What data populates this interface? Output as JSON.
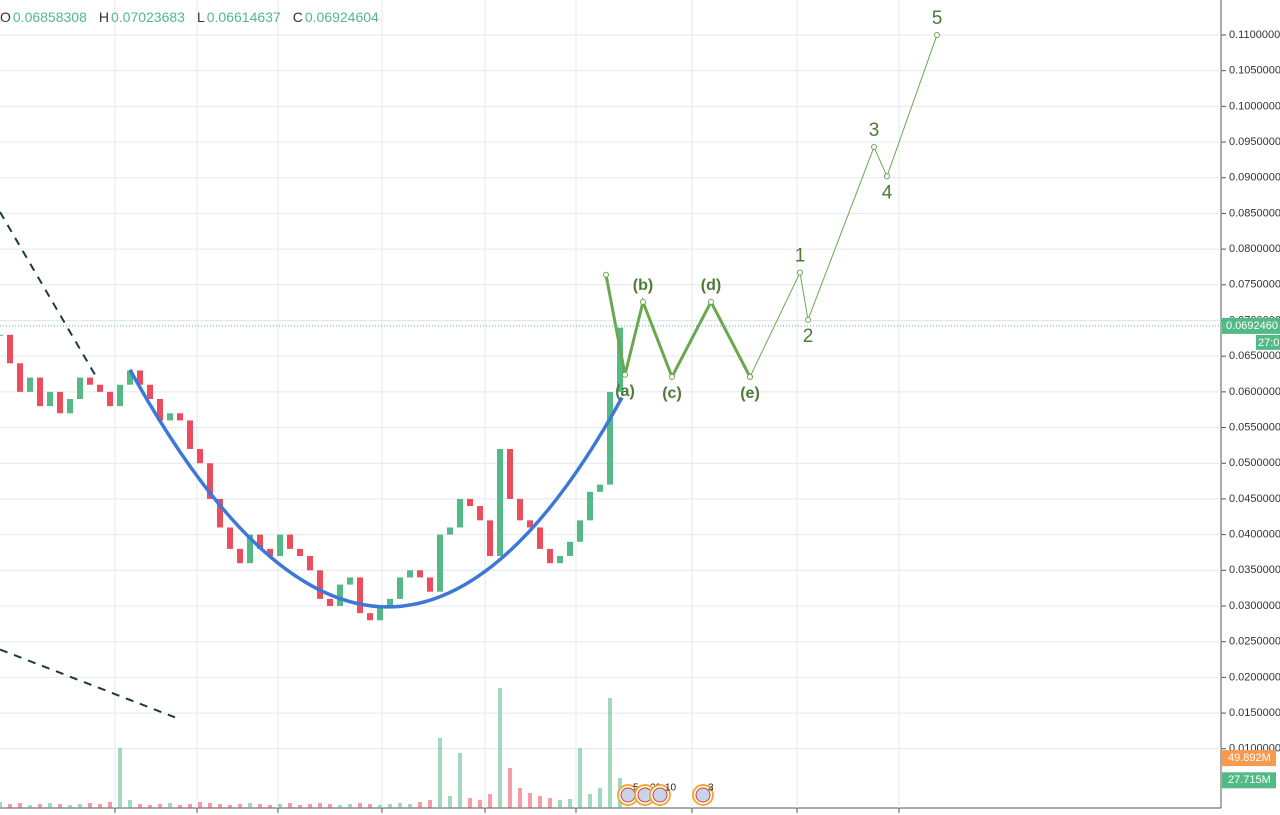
{
  "chart_data": {
    "type": "candlestick",
    "header": [
      {
        "key": "O",
        "value": "0.06858308"
      },
      {
        "key": "H",
        "value": "0.07023683"
      },
      {
        "key": "L",
        "value": "0.06614637"
      },
      {
        "key": "C",
        "value": "0.06924604"
      }
    ],
    "xlim": [
      0,
      1220
    ],
    "ylim": [
      0.0017,
      0.1149
    ],
    "vol_lim": [
      0,
      808
    ],
    "xticks": [
      115,
      197,
      278,
      382,
      485,
      576,
      692,
      797,
      899
    ],
    "yticks": [
      {
        "value": 0.01,
        "label": "0.0100000"
      },
      {
        "value": 0.015,
        "label": "0.0150000"
      },
      {
        "value": 0.02,
        "label": "0.0200000"
      },
      {
        "value": 0.025,
        "label": "0.0250000"
      },
      {
        "value": 0.03,
        "label": "0.0300000"
      },
      {
        "value": 0.035,
        "label": "0.0350000"
      },
      {
        "value": 0.04,
        "label": "0.0400000"
      },
      {
        "value": 0.045,
        "label": "0.0450000"
      },
      {
        "value": 0.05,
        "label": "0.0500000"
      },
      {
        "value": 0.055,
        "label": "0.0550000"
      },
      {
        "value": 0.06,
        "label": "0.0600000"
      },
      {
        "value": 0.065,
        "label": "0.0650000"
      },
      {
        "value": 0.07,
        "label": "0.0700000"
      },
      {
        "value": 0.075,
        "label": "0.0750000"
      },
      {
        "value": 0.08,
        "label": "0.0800000"
      },
      {
        "value": 0.085,
        "label": "0.0850000"
      },
      {
        "value": 0.09,
        "label": "0.0900000"
      },
      {
        "value": 0.095,
        "label": "0.0950000"
      },
      {
        "value": 0.1,
        "label": "0.1000000"
      },
      {
        "value": 0.105,
        "label": "0.1050000"
      },
      {
        "value": 0.11,
        "label": "0.1100000"
      }
    ],
    "up_color": "#53b987",
    "down_color": "#eb4d5c",
    "x": [
      0,
      10,
      20,
      30,
      40,
      50,
      60,
      70,
      80,
      90,
      100,
      110,
      120,
      130,
      140,
      150,
      160,
      170,
      180,
      190,
      200,
      210,
      220,
      230,
      240,
      250,
      260,
      270,
      280,
      290,
      300,
      310,
      320,
      330,
      340,
      350,
      360,
      370,
      380,
      390,
      400,
      410,
      420,
      430,
      440,
      450,
      460,
      470,
      480,
      490,
      500,
      510,
      520,
      530,
      540,
      550,
      560,
      570,
      580,
      590,
      600,
      610,
      620
    ],
    "close": [
      0.068,
      0.064,
      0.06,
      0.062,
      0.058,
      0.06,
      0.057,
      0.059,
      0.062,
      0.061,
      0.06,
      0.058,
      0.061,
      0.063,
      0.061,
      0.059,
      0.056,
      0.057,
      0.056,
      0.052,
      0.05,
      0.045,
      0.041,
      0.038,
      0.036,
      0.04,
      0.038,
      0.037,
      0.04,
      0.038,
      0.037,
      0.035,
      0.031,
      0.03,
      0.033,
      0.034,
      0.029,
      0.028,
      0.03,
      0.031,
      0.034,
      0.035,
      0.034,
      0.032,
      0.04,
      0.041,
      0.045,
      0.044,
      0.042,
      0.037,
      0.052,
      0.045,
      0.042,
      0.041,
      0.038,
      0.036,
      0.037,
      0.039,
      0.042,
      0.046,
      0.047,
      0.06,
      0.069
    ],
    "volume": [
      6,
      4,
      5,
      3,
      4,
      5,
      4,
      3,
      4,
      5,
      4,
      6,
      60,
      8,
      4,
      3,
      4,
      5,
      3,
      4,
      6,
      5,
      4,
      3,
      4,
      5,
      4,
      3,
      4,
      5,
      3,
      4,
      5,
      4,
      3,
      4,
      5,
      4,
      3,
      4,
      5,
      4,
      6,
      8,
      70,
      12,
      55,
      10,
      8,
      14,
      120,
      40,
      20,
      15,
      12,
      10,
      8,
      9,
      60,
      14,
      20,
      110,
      30
    ],
    "vol_colors": [
      "#53b987",
      "#eb4d5c"
    ],
    "last_price": {
      "value": 0.069246,
      "label": "0.0692460",
      "countdown": "27:0"
    },
    "volume_labels": [
      {
        "value": 49.892,
        "label": "49.892M",
        "color": "#f89a4e"
      },
      {
        "value": 27.715,
        "label": "27.715M",
        "color": "#53b987"
      }
    ],
    "corrective": {
      "color": "#6aa84f",
      "x": [
        606,
        625,
        643,
        672,
        711,
        750
      ],
      "values": [
        0.0764,
        0.0624,
        0.0726,
        0.0621,
        0.0726,
        0.0621
      ],
      "labels": [
        null,
        "(a)",
        "(b)",
        "(c)",
        "(d)",
        "(e)"
      ]
    },
    "impulse": {
      "color": "#6aa84f",
      "x": [
        750,
        800,
        808,
        874,
        887,
        937
      ],
      "values": [
        0.0621,
        0.0767,
        0.0701,
        0.0943,
        0.0902,
        0.11
      ],
      "labels": [
        null,
        "1",
        "2",
        "3",
        "4",
        "5"
      ]
    },
    "cup": {
      "color": "#3d78d8",
      "x": [
        130,
        380,
        622
      ],
      "values": [
        0.0631,
        0.0299,
        0.0592
      ]
    },
    "trendlines": [
      {
        "x": [
          0,
          95
        ],
        "values": [
          0.0852,
          0.0624
        ]
      },
      {
        "x": [
          0,
          175
        ],
        "values": [
          0.0239,
          0.0144
        ]
      }
    ],
    "events": [
      {
        "x": 628,
        "label": "5"
      },
      {
        "x": 645,
        "label": "29"
      },
      {
        "x": 660,
        "label": "10"
      },
      {
        "x": 703,
        "label": "3"
      }
    ]
  }
}
